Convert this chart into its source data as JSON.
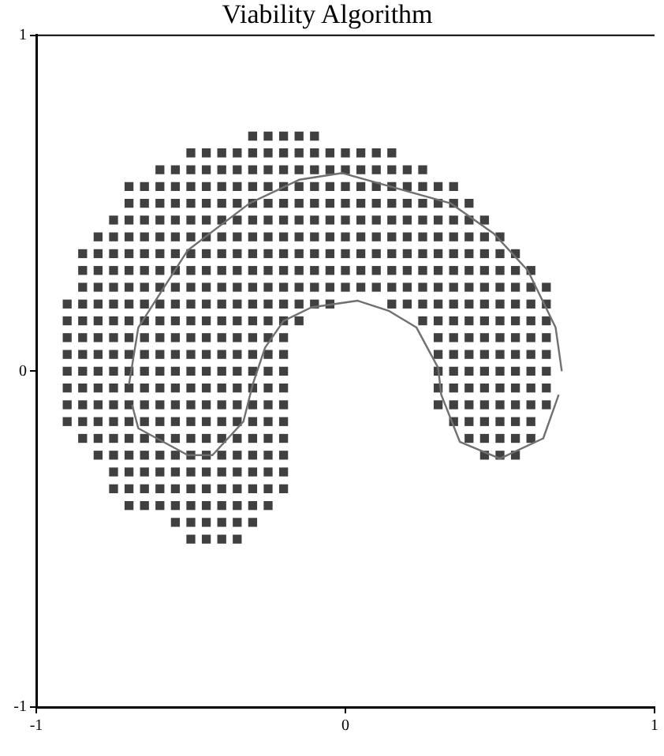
{
  "chart_data": {
    "type": "scatter",
    "title": "Viability Algorithm",
    "xlim": [
      -1,
      1
    ],
    "ylim": [
      -1,
      1
    ],
    "xticks": [
      -1,
      0,
      1
    ],
    "yticks": [
      -1,
      0,
      1
    ],
    "grid": false,
    "legend": false,
    "marker": "square",
    "series": [
      {
        "type": "line",
        "marker": "none",
        "color": "#707070",
        "x": [
          -0.7,
          -0.67,
          -0.51,
          -0.31,
          -0.15,
          -0.01,
          0.34,
          0.48,
          0.59,
          0.68,
          0.7
        ],
        "values": [
          -0.04,
          0.13,
          0.36,
          0.5,
          0.57,
          0.59,
          0.5,
          0.41,
          0.3,
          0.13,
          0.0
        ]
      },
      {
        "type": "line",
        "marker": "none",
        "color": "#707070",
        "x": [
          -0.69,
          -0.67,
          -0.51,
          -0.43,
          -0.33,
          -0.3,
          -0.26,
          -0.2,
          -0.11,
          0.04,
          0.14,
          0.23,
          0.3,
          0.31,
          0.37,
          0.5,
          0.64,
          0.69
        ],
        "values": [
          -0.1,
          -0.17,
          -0.25,
          -0.25,
          -0.15,
          -0.04,
          0.07,
          0.15,
          0.19,
          0.21,
          0.18,
          0.13,
          0.01,
          -0.07,
          -0.21,
          -0.26,
          -0.2,
          -0.07
        ]
      },
      {
        "color": "#404040",
        "x": [
          -0.3,
          -0.25,
          -0.2,
          -0.15,
          -0.1
        ],
        "values": [
          0.7,
          0.7,
          0.7,
          0.7,
          0.7
        ]
      },
      {
        "color": "#404040",
        "x": [
          -0.5,
          -0.45,
          -0.4,
          -0.35,
          -0.3,
          -0.25,
          -0.2,
          -0.15,
          -0.1,
          -0.05,
          0,
          0.05,
          0.1,
          0.15
        ],
        "values": [
          0.65,
          0.65,
          0.65,
          0.65,
          0.65,
          0.65,
          0.65,
          0.65,
          0.65,
          0.65,
          0.65,
          0.65,
          0.65,
          0.65
        ]
      },
      {
        "color": "#404040",
        "x": [
          -0.6,
          -0.55,
          -0.5,
          -0.45,
          -0.4,
          -0.35,
          -0.3,
          -0.25,
          -0.2,
          -0.15,
          -0.1,
          -0.05,
          0,
          0.05,
          0.1,
          0.15,
          0.2,
          0.25
        ],
        "values": [
          0.6,
          0.6,
          0.6,
          0.6,
          0.6,
          0.6,
          0.6,
          0.6,
          0.6,
          0.6,
          0.6,
          0.6,
          0.6,
          0.6,
          0.6,
          0.6,
          0.6,
          0.6
        ]
      },
      {
        "color": "#404040",
        "x": [
          -0.7,
          -0.65,
          -0.6,
          -0.55,
          -0.5,
          -0.45,
          -0.4,
          -0.35,
          -0.3,
          -0.25,
          -0.2,
          -0.15,
          -0.1,
          -0.05,
          0,
          0.05,
          0.1,
          0.15,
          0.2,
          0.25,
          0.3,
          0.35
        ],
        "values": [
          0.55,
          0.55,
          0.55,
          0.55,
          0.55,
          0.55,
          0.55,
          0.55,
          0.55,
          0.55,
          0.55,
          0.55,
          0.55,
          0.55,
          0.55,
          0.55,
          0.55,
          0.55,
          0.55,
          0.55,
          0.55,
          0.55
        ]
      },
      {
        "color": "#404040",
        "x": [
          -0.7,
          -0.65,
          -0.6,
          -0.55,
          -0.5,
          -0.45,
          -0.4,
          -0.35,
          -0.3,
          -0.25,
          -0.2,
          -0.15,
          -0.1,
          -0.05,
          0,
          0.05,
          0.1,
          0.15,
          0.2,
          0.25,
          0.3,
          0.35,
          0.4
        ],
        "values": [
          0.5,
          0.5,
          0.5,
          0.5,
          0.5,
          0.5,
          0.5,
          0.5,
          0.5,
          0.5,
          0.5,
          0.5,
          0.5,
          0.5,
          0.5,
          0.5,
          0.5,
          0.5,
          0.5,
          0.5,
          0.5,
          0.5,
          0.5
        ]
      },
      {
        "color": "#404040",
        "x": [
          -0.75,
          -0.7,
          -0.65,
          -0.6,
          -0.55,
          -0.5,
          -0.45,
          -0.4,
          -0.35,
          -0.3,
          -0.25,
          -0.2,
          -0.15,
          -0.1,
          -0.05,
          0,
          0.05,
          0.1,
          0.15,
          0.2,
          0.25,
          0.3,
          0.35,
          0.4,
          0.45
        ],
        "values": [
          0.45,
          0.45,
          0.45,
          0.45,
          0.45,
          0.45,
          0.45,
          0.45,
          0.45,
          0.45,
          0.45,
          0.45,
          0.45,
          0.45,
          0.45,
          0.45,
          0.45,
          0.45,
          0.45,
          0.45,
          0.45,
          0.45,
          0.45,
          0.45,
          0.45
        ]
      },
      {
        "color": "#404040",
        "x": [
          -0.8,
          -0.75,
          -0.7,
          -0.65,
          -0.6,
          -0.55,
          -0.5,
          -0.45,
          -0.4,
          -0.35,
          -0.3,
          -0.25,
          -0.2,
          -0.15,
          -0.1,
          -0.05,
          0,
          0.05,
          0.1,
          0.15,
          0.2,
          0.25,
          0.3,
          0.35,
          0.4,
          0.45,
          0.5
        ],
        "values": [
          0.4,
          0.4,
          0.4,
          0.4,
          0.4,
          0.4,
          0.4,
          0.4,
          0.4,
          0.4,
          0.4,
          0.4,
          0.4,
          0.4,
          0.4,
          0.4,
          0.4,
          0.4,
          0.4,
          0.4,
          0.4,
          0.4,
          0.4,
          0.4,
          0.4,
          0.4,
          0.4
        ]
      },
      {
        "color": "#404040",
        "x": [
          -0.85,
          -0.8,
          -0.75,
          -0.7,
          -0.65,
          -0.6,
          -0.55,
          -0.5,
          -0.45,
          -0.4,
          -0.35,
          -0.3,
          -0.25,
          -0.2,
          -0.15,
          -0.1,
          -0.05,
          0,
          0.05,
          0.1,
          0.15,
          0.2,
          0.25,
          0.3,
          0.35,
          0.4,
          0.45,
          0.5,
          0.55
        ],
        "values": [
          0.35,
          0.35,
          0.35,
          0.35,
          0.35,
          0.35,
          0.35,
          0.35,
          0.35,
          0.35,
          0.35,
          0.35,
          0.35,
          0.35,
          0.35,
          0.35,
          0.35,
          0.35,
          0.35,
          0.35,
          0.35,
          0.35,
          0.35,
          0.35,
          0.35,
          0.35,
          0.35,
          0.35,
          0.35
        ]
      },
      {
        "color": "#404040",
        "x": [
          -0.85,
          -0.8,
          -0.75,
          -0.7,
          -0.65,
          -0.6,
          -0.55,
          -0.5,
          -0.45,
          -0.4,
          -0.35,
          -0.3,
          -0.25,
          -0.2,
          -0.15,
          -0.1,
          -0.05,
          0,
          0.05,
          0.1,
          0.15,
          0.2,
          0.25,
          0.3,
          0.35,
          0.4,
          0.45,
          0.5,
          0.55,
          0.6
        ],
        "values": [
          0.3,
          0.3,
          0.3,
          0.3,
          0.3,
          0.3,
          0.3,
          0.3,
          0.3,
          0.3,
          0.3,
          0.3,
          0.3,
          0.3,
          0.3,
          0.3,
          0.3,
          0.3,
          0.3,
          0.3,
          0.3,
          0.3,
          0.3,
          0.3,
          0.3,
          0.3,
          0.3,
          0.3,
          0.3,
          0.3
        ]
      },
      {
        "color": "#404040",
        "x": [
          -0.85,
          -0.8,
          -0.75,
          -0.7,
          -0.65,
          -0.6,
          -0.55,
          -0.5,
          -0.45,
          -0.4,
          -0.35,
          -0.3,
          -0.25,
          -0.2,
          -0.15,
          -0.1,
          -0.05,
          0,
          0.05,
          0.1,
          0.15,
          0.2,
          0.25,
          0.3,
          0.35,
          0.4,
          0.45,
          0.5,
          0.55,
          0.6,
          0.65
        ],
        "values": [
          0.25,
          0.25,
          0.25,
          0.25,
          0.25,
          0.25,
          0.25,
          0.25,
          0.25,
          0.25,
          0.25,
          0.25,
          0.25,
          0.25,
          0.25,
          0.25,
          0.25,
          0.25,
          0.25,
          0.25,
          0.25,
          0.25,
          0.25,
          0.25,
          0.25,
          0.25,
          0.25,
          0.25,
          0.25,
          0.25,
          0.25
        ]
      },
      {
        "color": "#404040",
        "x": [
          -0.9,
          -0.85,
          -0.8,
          -0.75,
          -0.7,
          -0.65,
          -0.6,
          -0.55,
          -0.5,
          -0.45,
          -0.4,
          -0.35,
          -0.3,
          -0.25,
          -0.2,
          -0.15,
          -0.1,
          -0.05,
          0.15,
          0.2,
          0.25,
          0.3,
          0.35,
          0.4,
          0.45,
          0.5,
          0.55,
          0.6,
          0.65
        ],
        "values": [
          0.2,
          0.2,
          0.2,
          0.2,
          0.2,
          0.2,
          0.2,
          0.2,
          0.2,
          0.2,
          0.2,
          0.2,
          0.2,
          0.2,
          0.2,
          0.2,
          0.2,
          0.2,
          0.2,
          0.2,
          0.2,
          0.2,
          0.2,
          0.2,
          0.2,
          0.2,
          0.2,
          0.2,
          0.2
        ]
      },
      {
        "color": "#404040",
        "x": [
          -0.9,
          -0.85,
          -0.8,
          -0.75,
          -0.7,
          -0.65,
          -0.6,
          -0.55,
          -0.5,
          -0.45,
          -0.4,
          -0.35,
          -0.3,
          -0.25,
          -0.2,
          -0.15,
          0.25,
          0.3,
          0.35,
          0.4,
          0.45,
          0.5,
          0.55,
          0.6,
          0.65
        ],
        "values": [
          0.15,
          0.15,
          0.15,
          0.15,
          0.15,
          0.15,
          0.15,
          0.15,
          0.15,
          0.15,
          0.15,
          0.15,
          0.15,
          0.15,
          0.15,
          0.15,
          0.15,
          0.15,
          0.15,
          0.15,
          0.15,
          0.15,
          0.15,
          0.15,
          0.15
        ]
      },
      {
        "color": "#404040",
        "x": [
          -0.9,
          -0.85,
          -0.8,
          -0.75,
          -0.7,
          -0.65,
          -0.6,
          -0.55,
          -0.5,
          -0.45,
          -0.4,
          -0.35,
          -0.3,
          -0.25,
          -0.2,
          0.3,
          0.35,
          0.4,
          0.45,
          0.5,
          0.55,
          0.6,
          0.65
        ],
        "values": [
          0.1,
          0.1,
          0.1,
          0.1,
          0.1,
          0.1,
          0.1,
          0.1,
          0.1,
          0.1,
          0.1,
          0.1,
          0.1,
          0.1,
          0.1,
          0.1,
          0.1,
          0.1,
          0.1,
          0.1,
          0.1,
          0.1,
          0.1
        ]
      },
      {
        "color": "#404040",
        "x": [
          -0.9,
          -0.85,
          -0.8,
          -0.75,
          -0.7,
          -0.65,
          -0.6,
          -0.55,
          -0.5,
          -0.45,
          -0.4,
          -0.35,
          -0.3,
          -0.25,
          -0.2,
          0.3,
          0.35,
          0.4,
          0.45,
          0.5,
          0.55,
          0.6,
          0.65
        ],
        "values": [
          0.05,
          0.05,
          0.05,
          0.05,
          0.05,
          0.05,
          0.05,
          0.05,
          0.05,
          0.05,
          0.05,
          0.05,
          0.05,
          0.05,
          0.05,
          0.05,
          0.05,
          0.05,
          0.05,
          0.05,
          0.05,
          0.05,
          0.05
        ]
      },
      {
        "color": "#404040",
        "x": [
          -0.9,
          -0.85,
          -0.8,
          -0.75,
          -0.7,
          -0.65,
          -0.6,
          -0.55,
          -0.5,
          -0.45,
          -0.4,
          -0.35,
          -0.3,
          -0.25,
          -0.2,
          0.3,
          0.35,
          0.4,
          0.45,
          0.5,
          0.55,
          0.6,
          0.65
        ],
        "values": [
          0,
          0,
          0,
          0,
          0,
          0,
          0,
          0,
          0,
          0,
          0,
          0,
          0,
          0,
          0,
          0,
          0,
          0,
          0,
          0,
          0,
          0,
          0
        ]
      },
      {
        "color": "#404040",
        "x": [
          -0.9,
          -0.85,
          -0.8,
          -0.75,
          -0.7,
          -0.65,
          -0.6,
          -0.55,
          -0.5,
          -0.45,
          -0.4,
          -0.35,
          -0.3,
          -0.25,
          -0.2,
          0.3,
          0.35,
          0.4,
          0.45,
          0.5,
          0.55,
          0.6,
          0.65
        ],
        "values": [
          -0.05,
          -0.05,
          -0.05,
          -0.05,
          -0.05,
          -0.05,
          -0.05,
          -0.05,
          -0.05,
          -0.05,
          -0.05,
          -0.05,
          -0.05,
          -0.05,
          -0.05,
          -0.05,
          -0.05,
          -0.05,
          -0.05,
          -0.05,
          -0.05,
          -0.05,
          -0.05
        ]
      },
      {
        "color": "#404040",
        "x": [
          -0.9,
          -0.85,
          -0.8,
          -0.75,
          -0.7,
          -0.65,
          -0.6,
          -0.55,
          -0.5,
          -0.45,
          -0.4,
          -0.35,
          -0.3,
          -0.25,
          -0.2,
          0.3,
          0.35,
          0.4,
          0.45,
          0.5,
          0.55,
          0.6,
          0.65
        ],
        "values": [
          -0.1,
          -0.1,
          -0.1,
          -0.1,
          -0.1,
          -0.1,
          -0.1,
          -0.1,
          -0.1,
          -0.1,
          -0.1,
          -0.1,
          -0.1,
          -0.1,
          -0.1,
          -0.1,
          -0.1,
          -0.1,
          -0.1,
          -0.1,
          -0.1,
          -0.1,
          -0.1
        ]
      },
      {
        "color": "#404040",
        "x": [
          -0.9,
          -0.85,
          -0.8,
          -0.75,
          -0.7,
          -0.65,
          -0.6,
          -0.55,
          -0.5,
          -0.45,
          -0.4,
          -0.35,
          -0.3,
          -0.25,
          -0.2,
          0.35,
          0.4,
          0.45,
          0.5,
          0.55,
          0.6
        ],
        "values": [
          -0.15,
          -0.15,
          -0.15,
          -0.15,
          -0.15,
          -0.15,
          -0.15,
          -0.15,
          -0.15,
          -0.15,
          -0.15,
          -0.15,
          -0.15,
          -0.15,
          -0.15,
          -0.15,
          -0.15,
          -0.15,
          -0.15,
          -0.15,
          -0.15
        ]
      },
      {
        "color": "#404040",
        "x": [
          -0.85,
          -0.8,
          -0.75,
          -0.7,
          -0.65,
          -0.6,
          -0.55,
          -0.5,
          -0.45,
          -0.4,
          -0.35,
          -0.3,
          -0.25,
          -0.2,
          0.4,
          0.45,
          0.5,
          0.55,
          0.6
        ],
        "values": [
          -0.2,
          -0.2,
          -0.2,
          -0.2,
          -0.2,
          -0.2,
          -0.2,
          -0.2,
          -0.2,
          -0.2,
          -0.2,
          -0.2,
          -0.2,
          -0.2,
          -0.2,
          -0.2,
          -0.2,
          -0.2,
          -0.2
        ]
      },
      {
        "color": "#404040",
        "x": [
          -0.8,
          -0.75,
          -0.7,
          -0.65,
          -0.6,
          -0.55,
          -0.5,
          -0.45,
          -0.4,
          -0.35,
          -0.3,
          -0.25,
          -0.2,
          0.45,
          0.5,
          0.55
        ],
        "values": [
          -0.25,
          -0.25,
          -0.25,
          -0.25,
          -0.25,
          -0.25,
          -0.25,
          -0.25,
          -0.25,
          -0.25,
          -0.25,
          -0.25,
          -0.25,
          -0.25,
          -0.25,
          -0.25
        ]
      },
      {
        "color": "#404040",
        "x": [
          -0.75,
          -0.7,
          -0.65,
          -0.6,
          -0.55,
          -0.5,
          -0.45,
          -0.4,
          -0.35,
          -0.3,
          -0.25,
          -0.2
        ],
        "values": [
          -0.3,
          -0.3,
          -0.3,
          -0.3,
          -0.3,
          -0.3,
          -0.3,
          -0.3,
          -0.3,
          -0.3,
          -0.3,
          -0.3
        ]
      },
      {
        "color": "#404040",
        "x": [
          -0.75,
          -0.7,
          -0.65,
          -0.6,
          -0.55,
          -0.5,
          -0.45,
          -0.4,
          -0.35,
          -0.3,
          -0.25,
          -0.2
        ],
        "values": [
          -0.35,
          -0.35,
          -0.35,
          -0.35,
          -0.35,
          -0.35,
          -0.35,
          -0.35,
          -0.35,
          -0.35,
          -0.35,
          -0.35
        ]
      },
      {
        "color": "#404040",
        "x": [
          -0.7,
          -0.65,
          -0.6,
          -0.55,
          -0.5,
          -0.45,
          -0.4,
          -0.35,
          -0.3,
          -0.25
        ],
        "values": [
          -0.4,
          -0.4,
          -0.4,
          -0.4,
          -0.4,
          -0.4,
          -0.4,
          -0.4,
          -0.4,
          -0.4
        ]
      },
      {
        "color": "#404040",
        "x": [
          -0.55,
          -0.5,
          -0.45,
          -0.4,
          -0.35,
          -0.3
        ],
        "values": [
          -0.45,
          -0.45,
          -0.45,
          -0.45,
          -0.45,
          -0.45
        ]
      },
      {
        "color": "#404040",
        "x": [
          -0.5,
          -0.45,
          -0.4,
          -0.35
        ],
        "values": [
          -0.5,
          -0.5,
          -0.5,
          -0.5
        ]
      }
    ]
  }
}
